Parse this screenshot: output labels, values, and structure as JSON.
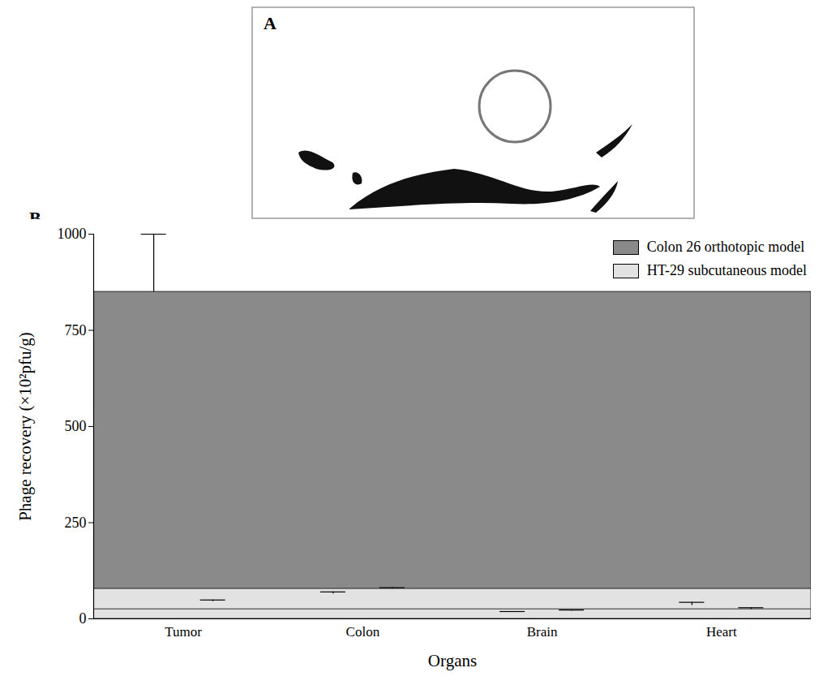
{
  "figure_labels": [
    "A",
    "B"
  ],
  "chart_data": {
    "type": "bar",
    "x_label": "Organs",
    "y_label": "Phage recovery (×10²pfu/g)",
    "categories": [
      "Tumor",
      "Colon",
      "Brain",
      "Heart"
    ],
    "series": [
      {
        "name": "Colon 26 orthotopic model",
        "color": "#8a8a8a",
        "values": [
          850,
          65,
          17,
          35
        ],
        "errors": [
          150,
          5,
          2,
          8
        ]
      },
      {
        "name": "HT-29 subcutaneous model",
        "color": "#e2e2e2",
        "values": [
          45,
          78,
          20,
          25
        ],
        "errors": [
          4,
          3,
          3,
          4
        ]
      }
    ],
    "ylim": [
      0,
      1000
    ],
    "yticks": [
      0,
      250,
      500,
      750,
      1000
    ],
    "grid": false,
    "legend": "top-right"
  }
}
